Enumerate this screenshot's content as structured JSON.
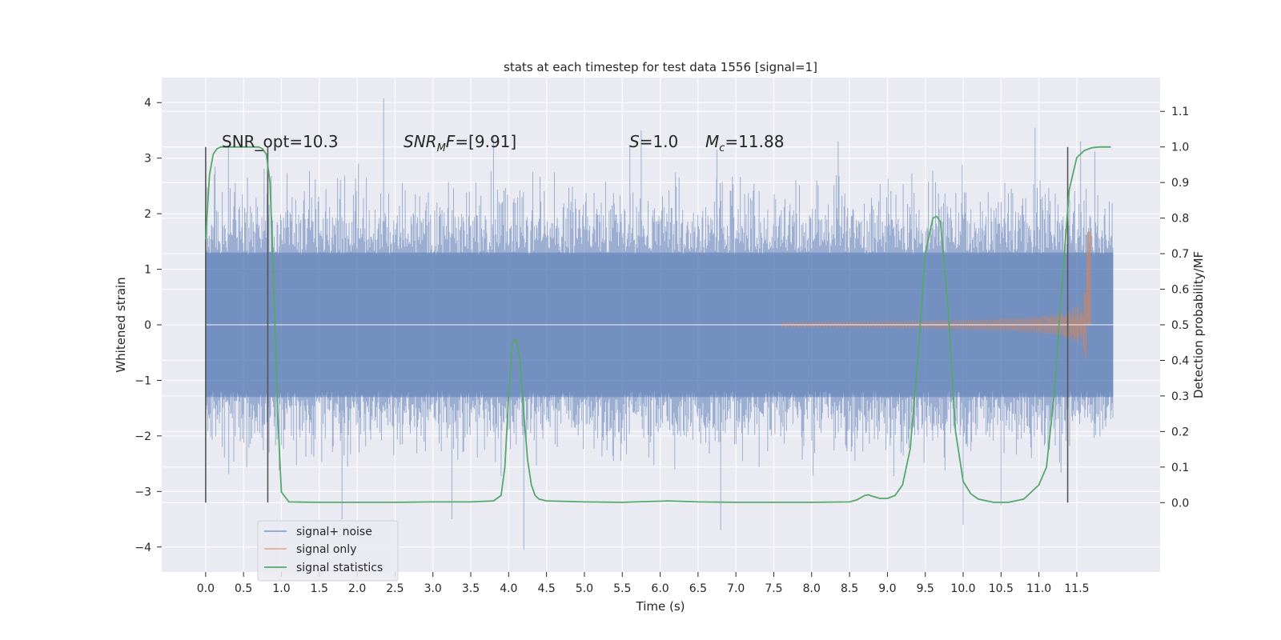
{
  "chart_data": {
    "type": "line",
    "title": "stats at each timestep for test data 1556 [signal=1]",
    "xlabel": "Time (s)",
    "ylabel": "Whitened strain",
    "y2label": "Detection probability/MF",
    "xlim": [
      -0.58,
      12.6
    ],
    "ylim": [
      -4.45,
      4.45
    ],
    "y2lim": [
      -0.195,
      1.195
    ],
    "xticks": [
      0.0,
      0.5,
      1.0,
      1.5,
      2.0,
      2.5,
      3.0,
      3.5,
      4.0,
      4.5,
      5.0,
      5.5,
      6.0,
      6.5,
      7.0,
      7.5,
      8.0,
      8.5,
      9.0,
      9.5,
      10.0,
      10.5,
      11.0,
      11.5
    ],
    "xtick_labels": [
      "0.0",
      "0.5",
      "1.0",
      "1.5",
      "2.0",
      "2.5",
      "3.0",
      "3.5",
      "4.0",
      "4.5",
      "5.0",
      "5.5",
      "6.0",
      "6.5",
      "7.0",
      "7.5",
      "8.0",
      "8.5",
      "9.0",
      "9.5",
      "10.0",
      "10.5",
      "11.0",
      "11.5"
    ],
    "yticks": [
      -4,
      -3,
      -2,
      -1,
      0,
      1,
      2,
      3,
      4
    ],
    "ytick_labels": [
      "−4",
      "−3",
      "−2",
      "−1",
      "0",
      "1",
      "2",
      "3",
      "4"
    ],
    "y2ticks": [
      0.0,
      0.1,
      0.2,
      0.3,
      0.4,
      0.5,
      0.6,
      0.7,
      0.8,
      0.9,
      1.0,
      1.1
    ],
    "y2tick_labels": [
      "0.0",
      "0.1",
      "0.2",
      "0.3",
      "0.4",
      "0.5",
      "0.6",
      "0.7",
      "0.8",
      "0.9",
      "1.0",
      "1.1"
    ],
    "grid": true,
    "legend_position": "lower-left",
    "annotations": {
      "snr_opt": "SNR_opt=10.3",
      "snr_mf_label": "SNR",
      "snr_mf_sub": "M",
      "snr_mf_rest": "F=[9.91]",
      "s_label": "S",
      "s_rest": "=1.0",
      "mc_label": "M",
      "mc_sub": "c",
      "mc_rest": "=11.88"
    },
    "vertical_markers_x": [
      0.0,
      0.82,
      11.38
    ],
    "series": [
      {
        "name": "signal+ noise",
        "color": "#4c72b0",
        "kind": "noise",
        "duration": [
          0.0,
          11.98
        ],
        "typical_range": [
          -2.0,
          2.1
        ],
        "peaks": [
          [
            2.35,
            4.08
          ],
          [
            0.3,
            3.2
          ],
          [
            3.8,
            3.4
          ],
          [
            5.6,
            3.2
          ],
          [
            5.75,
            3.5
          ],
          [
            6.75,
            3.15
          ],
          [
            8.35,
            3.3
          ],
          [
            10.95,
            3.55
          ],
          [
            11.55,
            3.3
          ],
          [
            1.8,
            -3.5
          ],
          [
            3.25,
            -3.5
          ],
          [
            4.2,
            -4.05
          ],
          [
            6.8,
            -3.7
          ],
          [
            10.0,
            -3.6
          ],
          [
            10.5,
            -3.25
          ]
        ]
      },
      {
        "name": "signal only",
        "color": "#dd8452",
        "kind": "chirp",
        "x_start": 7.6,
        "x_peak": 11.65,
        "x_end": 11.68,
        "max_amplitude": 1.75
      },
      {
        "name": "signal statistics",
        "color": "#55a868",
        "axis": "right",
        "x": [
          0.0,
          0.05,
          0.1,
          0.15,
          0.2,
          0.3,
          0.5,
          0.7,
          0.75,
          0.8,
          0.85,
          0.9,
          0.95,
          1.0,
          1.1,
          1.5,
          2.0,
          2.5,
          3.0,
          3.5,
          3.8,
          3.9,
          3.95,
          4.0,
          4.05,
          4.1,
          4.15,
          4.2,
          4.25,
          4.3,
          4.35,
          4.4,
          4.5,
          5.0,
          5.5,
          6.0,
          6.1,
          6.5,
          7.0,
          7.5,
          8.0,
          8.5,
          8.6,
          8.7,
          8.75,
          8.8,
          8.9,
          9.0,
          9.1,
          9.2,
          9.3,
          9.4,
          9.5,
          9.6,
          9.65,
          9.7,
          9.8,
          9.9,
          10.0,
          10.1,
          10.2,
          10.4,
          10.6,
          10.8,
          11.0,
          11.1,
          11.2,
          11.3,
          11.4,
          11.5,
          11.6,
          11.7,
          11.8,
          11.95
        ],
        "y": [
          0.74,
          0.92,
          0.98,
          0.995,
          1.0,
          1.0,
          1.0,
          1.0,
          0.995,
          0.98,
          0.9,
          0.6,
          0.25,
          0.03,
          0.002,
          0.001,
          0.001,
          0.001,
          0.002,
          0.002,
          0.005,
          0.02,
          0.1,
          0.3,
          0.45,
          0.46,
          0.4,
          0.25,
          0.12,
          0.05,
          0.02,
          0.01,
          0.005,
          0.002,
          0.001,
          0.004,
          0.005,
          0.002,
          0.001,
          0.001,
          0.001,
          0.002,
          0.008,
          0.02,
          0.022,
          0.018,
          0.012,
          0.012,
          0.02,
          0.05,
          0.15,
          0.4,
          0.7,
          0.8,
          0.805,
          0.79,
          0.55,
          0.2,
          0.06,
          0.025,
          0.01,
          0.001,
          0.001,
          0.01,
          0.05,
          0.1,
          0.3,
          0.6,
          0.88,
          0.97,
          0.99,
          0.998,
          1.0,
          1.0
        ]
      }
    ]
  }
}
